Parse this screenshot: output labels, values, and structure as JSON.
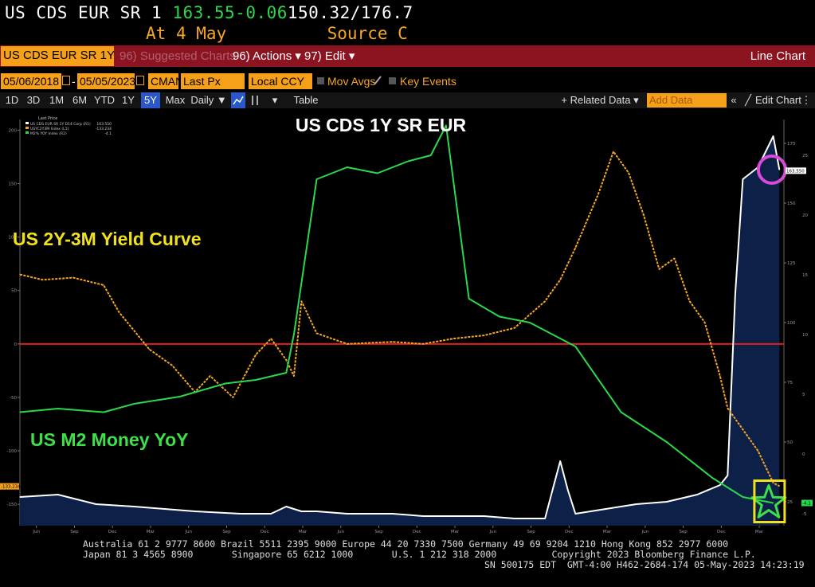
{
  "topline": {
    "ticker": "US CDS EUR SR 1",
    "price": "163.55",
    "change": "-0.06",
    "range": "150.32/176.7",
    "at_label": "At",
    "at_date": "4 May",
    "source": "Source C"
  },
  "menubar": {
    "ticker_field": "US CDS EUR SR 1Y D",
    "suggested": "96) Suggested Charts",
    "actions": "96) Actions ▾",
    "edit": "97) Edit ▾",
    "chart_type": "Line Chart"
  },
  "fields": {
    "start_date": "05/06/2018",
    "end_date": "05/05/2023",
    "source": "CMAN",
    "price_type": "Last Px",
    "currency": "Local CCY",
    "mov_avgs": "Mov Avgs",
    "key_events": "Key Events"
  },
  "rangebar": {
    "ranges": [
      "1D",
      "3D",
      "1M",
      "6M",
      "YTD",
      "1Y",
      "5Y",
      "Max"
    ],
    "selected": "5Y",
    "frequency": "Daily ▼",
    "table": "Table",
    "related": "+ Related Data ▾",
    "add_data_placeholder": "Add Data",
    "edit_chart": "Edit Chart"
  },
  "chart_data": {
    "type": "line",
    "title": "US CDS 1Y SR EUR",
    "annotations": [
      "US 2Y-3M Yield Curve",
      "US M2 Money YoY"
    ],
    "x_range": [
      "2018-05-06",
      "2023-05-05"
    ],
    "x_ticks": [
      "Jun",
      "Sep",
      "Dec",
      "Mar",
      "Jun",
      "Sep",
      "Dec",
      "Mar",
      "Jun",
      "Sep",
      "Dec",
      "Mar",
      "Jun",
      "Sep",
      "Dec",
      "Mar",
      "Jun",
      "Sep",
      "Dec",
      "Mar"
    ],
    "x_years": [
      "2018",
      "2019",
      "2020",
      "2021",
      "2022",
      "2023"
    ],
    "left_axis": {
      "ticks": [
        200,
        150,
        100,
        50,
        0,
        -50,
        -100,
        -150
      ],
      "range": [
        -170,
        210
      ]
    },
    "right_axis_cds": {
      "ticks": [
        175,
        150,
        125,
        100,
        75,
        50,
        25
      ],
      "range": [
        15,
        185
      ]
    },
    "right_axis_m2": {
      "ticks": [
        25,
        20,
        15,
        10,
        5,
        0,
        -5
      ],
      "range": [
        -6,
        28
      ]
    },
    "legend_header": "Last Price",
    "legend": [
      {
        "name": "US CDS EUR SR 1Y D14 Corp (R1)",
        "value": "163.550",
        "color": "#ffffff"
      },
      {
        "name": "USYC2Y3M Index (L1)",
        "value": "-133.234",
        "color": "#f5a623"
      },
      {
        "name": "M2% YOY Index (R2)",
        "value": "-4.1",
        "color": "#2bd84a"
      }
    ],
    "last_value_labels": {
      "left": "-133.234",
      "right_cds": "163.550",
      "right_m2": "-4.1"
    },
    "series": [
      {
        "name": "US CDS EUR SR 1Y D14 Corp",
        "axis": "right_cds",
        "color": "#ffffff",
        "x": [
          2018.35,
          2018.6,
          2018.85,
          2019.1,
          2019.3,
          2019.5,
          2019.8,
          2020.0,
          2020.1,
          2020.2,
          2020.3,
          2020.5,
          2020.8,
          2021.0,
          2021.2,
          2021.4,
          2021.6,
          2021.8,
          2021.85,
          2021.9,
          2021.95,
          2022.0,
          2022.2,
          2022.4,
          2022.6,
          2022.8,
          2022.95,
          2023.0,
          2023.05,
          2023.1,
          2023.2,
          2023.3,
          2023.34
        ],
        "y": [
          27,
          28,
          24,
          23,
          22,
          21,
          20,
          20,
          23,
          21,
          21,
          20,
          20,
          19,
          19,
          19,
          18,
          18,
          30,
          42,
          30,
          20,
          22,
          24,
          25,
          28,
          32,
          36,
          112,
          160,
          165,
          178,
          164
        ]
      },
      {
        "name": "USYC2Y3M Index",
        "axis": "left",
        "color": "#f5a623",
        "x": [
          2018.35,
          2018.5,
          2018.7,
          2018.9,
          2019.0,
          2019.2,
          2019.35,
          2019.5,
          2019.6,
          2019.75,
          2019.9,
          2020.0,
          2020.1,
          2020.15,
          2020.2,
          2020.3,
          2020.5,
          2020.8,
          2021.0,
          2021.2,
          2021.4,
          2021.6,
          2021.8,
          2021.9,
          2022.0,
          2022.15,
          2022.25,
          2022.35,
          2022.45,
          2022.55,
          2022.65,
          2022.75,
          2022.85,
          2022.95,
          2023.0,
          2023.1,
          2023.2,
          2023.3,
          2023.34
        ],
        "y": [
          65,
          60,
          62,
          55,
          30,
          -5,
          -20,
          -45,
          -30,
          -50,
          -10,
          5,
          -15,
          -30,
          40,
          10,
          0,
          2,
          0,
          5,
          8,
          15,
          40,
          60,
          90,
          140,
          180,
          160,
          120,
          70,
          80,
          40,
          20,
          -30,
          -60,
          -80,
          -100,
          -130,
          -133
        ]
      },
      {
        "name": "M2% YOY Index",
        "axis": "right_m2",
        "color": "#2bd84a",
        "x": [
          2018.35,
          2018.6,
          2018.9,
          2019.1,
          2019.4,
          2019.7,
          2019.9,
          2020.1,
          2020.15,
          2020.3,
          2020.5,
          2020.7,
          2020.9,
          2021.05,
          2021.15,
          2021.3,
          2021.5,
          2021.7,
          2022.0,
          2022.3,
          2022.6,
          2022.9,
          2023.1,
          2023.3
        ],
        "y": [
          3.5,
          3.8,
          3.5,
          4.2,
          4.8,
          5.9,
          6.2,
          6.8,
          10,
          23,
          24,
          23.5,
          24.5,
          25,
          27.5,
          13,
          11.5,
          11,
          9,
          3.5,
          1,
          -2,
          -3.6,
          -4.1
        ]
      }
    ],
    "horizontal_line": {
      "axis": "left",
      "value": 0,
      "color": "#e02020"
    },
    "markers": [
      {
        "kind": "circle",
        "color": "#d84bd8",
        "x": 2023.27,
        "axis": "right_cds",
        "y": 164
      },
      {
        "kind": "star",
        "color": "#3ee04a",
        "x": 2023.27,
        "axis": "right_m2",
        "y": -4.1
      },
      {
        "kind": "square",
        "color": "#f0e020",
        "x": 2023.27,
        "axis": "right_m2",
        "y": -4.1
      }
    ]
  },
  "footer": {
    "line1": "Australia 61 2 9777 8600 Brazil 5511 2395 9000 Europe 44 20 7330 7500 Germany 49 69 9204 1210 Hong Kong 852 2977 6000",
    "line2": "Japan 81 3 4565 8900       Singapore 65 6212 1000       U.S. 1 212 318 2000          Copyright 2023 Bloomberg Finance L.P.",
    "line3": "SN 500175 EDT  GMT-4:00 H462-2684-174 05-May-2023 14:23:19"
  }
}
